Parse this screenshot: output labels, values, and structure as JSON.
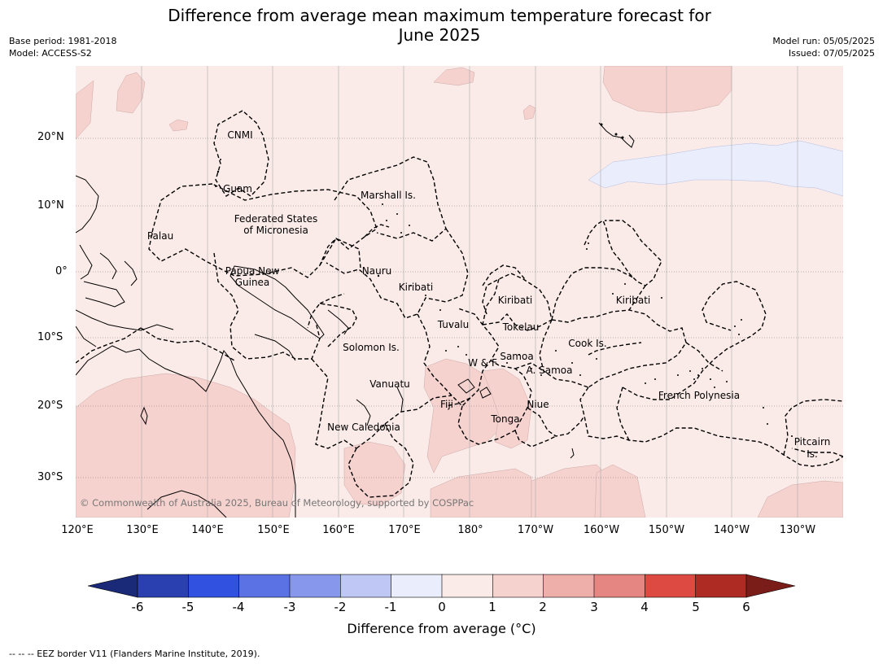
{
  "title": "Difference from average mean maximum temperature forecast for\nJune 2025",
  "title_line1": "Difference from average mean maximum temperature forecast for",
  "title_line2": "June 2025",
  "base_period": "Base period: 1981-2018",
  "model": "Model: ACCESS-S2",
  "model_run": "Model run: 05/05/2025",
  "issued": "Issued: 07/05/2025",
  "lat_labels": [
    "20°N",
    "10°N",
    "0°",
    "10°S",
    "20°S",
    "30°S"
  ],
  "lon_labels": [
    "120°E",
    "130°E",
    "140°E",
    "150°E",
    "160°E",
    "170°E",
    "180°",
    "170°W",
    "160°W",
    "150°W",
    "140°W",
    "130°W"
  ],
  "regions": {
    "cnmi": "CNMI",
    "guam": "Guam",
    "marshall": "Marshall Is.",
    "fsm1": "Federated States",
    "fsm2": "of Micronesia",
    "palau": "Palau",
    "png1": "Papua New",
    "png2": "Guinea",
    "nauru": "Nauru",
    "kiribati_w": "Kiribati",
    "kiribati_c": "Kiribati",
    "kiribati_e": "Kiribati",
    "tuvalu": "Tuvalu",
    "tokelau": "Tokelau",
    "cook": "Cook Is.",
    "solomon": "Solomon Is.",
    "wf": "W & F",
    "samoa": "Samoa",
    "asamoa": "A. Samoa",
    "vanuatu": "Vanuatu",
    "fiji": "Fiji",
    "niue": "Niue",
    "tonga": "Tonga",
    "frenchpoly": "French Polynesia",
    "newcal": "New Caledonia",
    "pitcairn1": "Pitcairn",
    "pitcairn2": "Is."
  },
  "copyright": "© Commonwealth of Australia 2025, Bureau of Meteorology, supported by COSPPac",
  "colorbar": {
    "title": "Difference from average (°C)",
    "ticks": [
      "-6",
      "-5",
      "-4",
      "-3",
      "-2",
      "-1",
      "0",
      "1",
      "2",
      "3",
      "4",
      "5",
      "6"
    ],
    "colors": [
      "#1b2a78",
      "#2a3fb0",
      "#3152e0",
      "#5b72e4",
      "#8797ec",
      "#bfc8f5",
      "#e9edfc",
      "#fbebe8",
      "#f6d2cf",
      "#eeaeaa",
      "#e58682",
      "#dc4a42",
      "#ad2b22",
      "#7a1c18"
    ]
  },
  "footnote": "--  --  -- EEZ border V11 (Flanders Marine Institute, 2019)."
}
